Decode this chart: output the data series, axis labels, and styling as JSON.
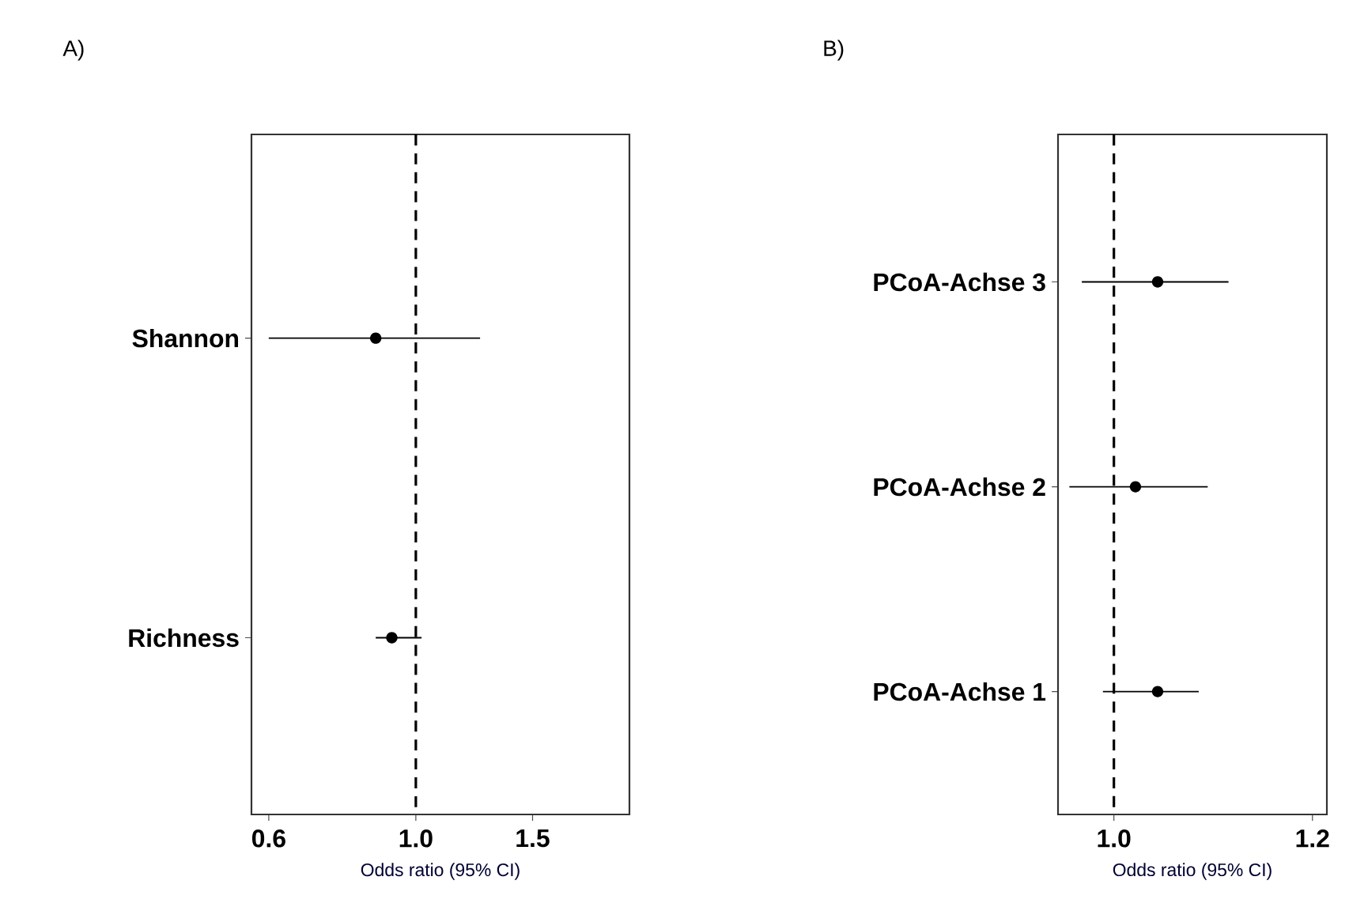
{
  "chart_data": [
    {
      "type": "scatter",
      "title": "A)",
      "xlabel": "Odds ratio (95% CI)",
      "orientation": "horizontal",
      "log": "x",
      "marker": "circle",
      "color": "#000000",
      "categories": [
        "Shannon",
        "Richness"
      ],
      "values": [
        0.87,
        0.92
      ],
      "errors": [
        [
          0.6,
          1.25
        ],
        [
          0.87,
          1.02
        ]
      ],
      "xlim": [
        0.565,
        2.1
      ],
      "xticks": [
        0.6,
        {
          "value": 1,
          "label": "1.0"
        },
        1.5
      ],
      "ref_lines": [
        {
          "axis": "x",
          "value": 1,
          "line_style": "dashed",
          "color": "#000000"
        }
      ]
    },
    {
      "type": "scatter",
      "title": "B)",
      "xlabel": "Odds ratio (95% CI)",
      "orientation": "horizontal",
      "log": "x",
      "marker": "circle",
      "color": "#000000",
      "categories": [
        "PCoA-Achse 3",
        "PCoA-Achse 2",
        "PCoA-Achse 1"
      ],
      "values": [
        1.041,
        1.02,
        1.041
      ],
      "errors": [
        [
          0.971,
          1.111
        ],
        [
          0.96,
          1.09
        ],
        [
          0.99,
          1.081
        ]
      ],
      "xlim": [
        0.95,
        1.216
      ],
      "xticks": [
        {
          "value": 1,
          "label": "1.0"
        },
        1.2
      ],
      "ref_lines": [
        {
          "axis": "x",
          "value": 1,
          "line_style": "dashed",
          "color": "#000000"
        }
      ]
    }
  ]
}
